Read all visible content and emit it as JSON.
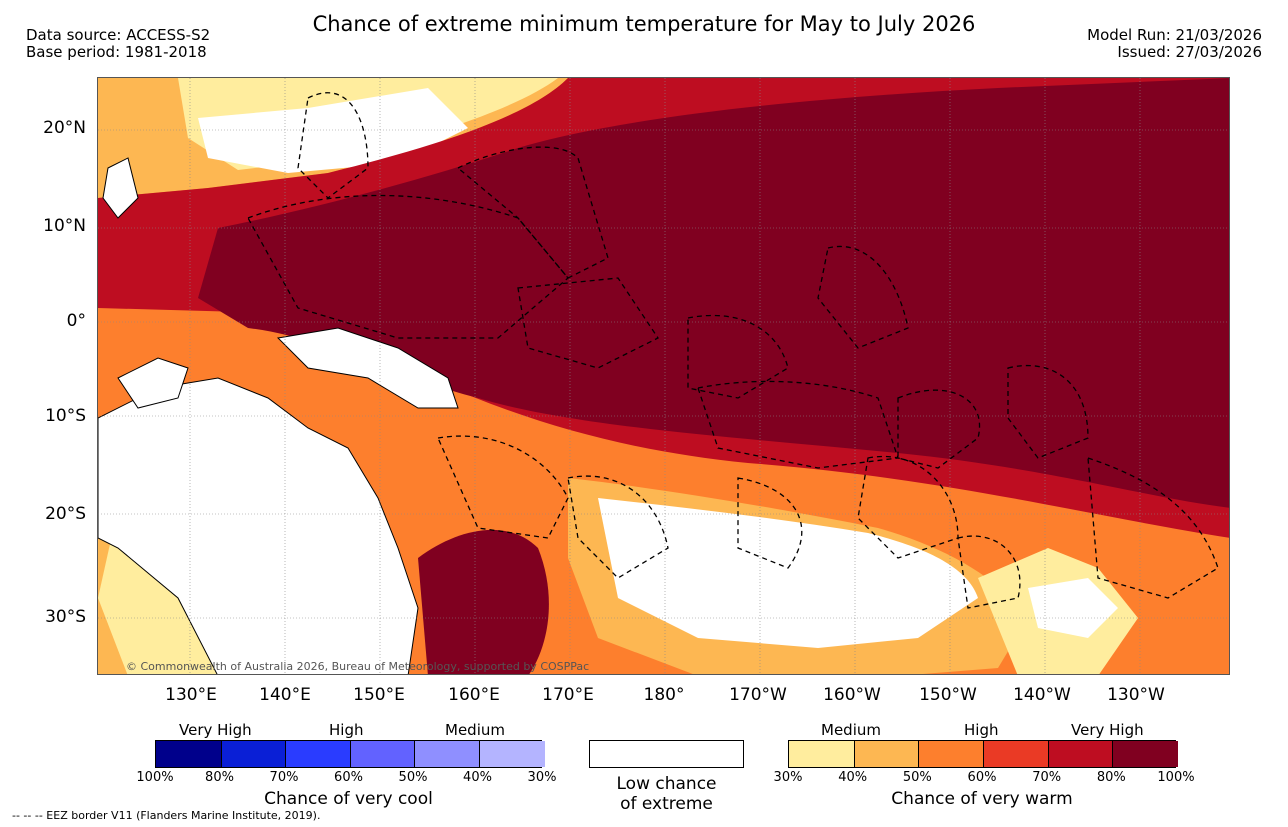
{
  "header": {
    "title": "Chance of extreme minimum temperature for May to July 2026",
    "data_source": "Data source: ACCESS-S2",
    "base_period": "Base period: 1981-2018",
    "model_run": "Model Run: 21/03/2026",
    "issued": "Issued: 27/03/2026"
  },
  "map": {
    "lat_labels": [
      "20°N",
      "10°N",
      "0°",
      "10°S",
      "20°S",
      "30°S"
    ],
    "lon_labels": [
      "130°E",
      "140°E",
      "150°E",
      "160°E",
      "170°E",
      "180°",
      "170°W",
      "160°W",
      "150°W",
      "140°W",
      "130°W"
    ],
    "copyright": "© Commonwealth of Australia 2026, Bureau of Meteorology, supported by COSPPac"
  },
  "legend": {
    "cool": {
      "category_labels": [
        "Very High",
        "High",
        "Medium"
      ],
      "ticks": [
        "100%",
        "80%",
        "70%",
        "60%",
        "50%",
        "40%",
        "30%"
      ],
      "colors": [
        "#00008b",
        "#0a1fd6",
        "#2a3cff",
        "#6262ff",
        "#8f8fff",
        "#b4b4ff"
      ],
      "caption": "Chance of very cool"
    },
    "neutral": {
      "caption_line1": "Low chance",
      "caption_line2": "of extreme",
      "color": "#ffffff"
    },
    "warm": {
      "category_labels": [
        "Medium",
        "High",
        "Very High"
      ],
      "ticks": [
        "30%",
        "40%",
        "50%",
        "60%",
        "70%",
        "80%",
        "100%"
      ],
      "colors": [
        "#ffed9e",
        "#fdb752",
        "#fd7f2d",
        "#ea3a25",
        "#be0d21",
        "#800020"
      ],
      "caption": "Chance of very warm"
    }
  },
  "footnote": "-- -- -- EEZ border V11 (Flanders Marine Institute, 2019)."
}
